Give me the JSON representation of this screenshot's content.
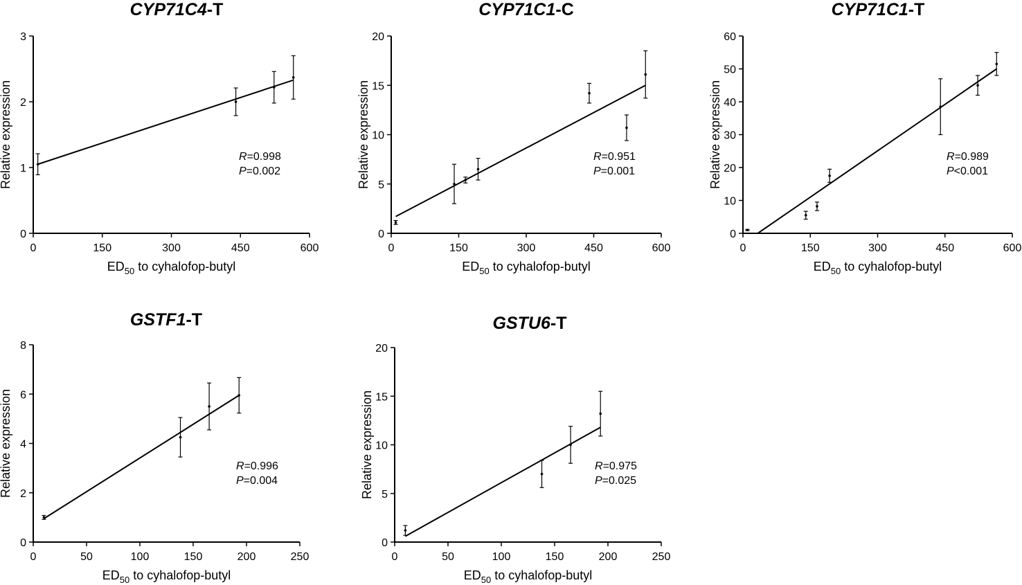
{
  "chart_data": [
    {
      "type": "scatter",
      "title": "CYP71C4",
      "title_suffix": "-T",
      "xlabel": "ED",
      "xlabel_sub": "50",
      "xlabel_rest": " to  cyhalofop-butyl",
      "ylabel": "Relative expression",
      "xlim": [
        0,
        600
      ],
      "ylim": [
        0,
        3
      ],
      "xticks": [
        0,
        150,
        300,
        450,
        600
      ],
      "yticks": [
        0,
        1,
        2,
        3
      ],
      "points": [
        {
          "x": 10,
          "y": 1.05,
          "err": 0.16
        },
        {
          "x": 440,
          "y": 2.0,
          "err": 0.21
        },
        {
          "x": 523,
          "y": 2.22,
          "err": 0.24
        },
        {
          "x": 565,
          "y": 2.37,
          "err": 0.33
        }
      ],
      "fit": [
        [
          10,
          1.05
        ],
        [
          565,
          2.33
        ]
      ],
      "annotation": {
        "r_label": "R",
        "r_value": "=0.998",
        "p_label": "P",
        "p_value": "=0.002"
      }
    },
    {
      "type": "scatter",
      "title": "CYP71C1",
      "title_suffix": "-C",
      "xlabel": "ED",
      "xlabel_sub": "50",
      "xlabel_rest": " to  cyhalofop-butyl",
      "ylabel": "Relative expression",
      "xlim": [
        0,
        600
      ],
      "ylim": [
        0,
        20
      ],
      "xticks": [
        0,
        150,
        300,
        450,
        600
      ],
      "yticks": [
        0,
        5,
        10,
        15,
        20
      ],
      "points": [
        {
          "x": 10,
          "y": 1.1,
          "err": 0.2
        },
        {
          "x": 140,
          "y": 5.0,
          "err": 2.0
        },
        {
          "x": 165,
          "y": 5.4,
          "err": 0.3
        },
        {
          "x": 193,
          "y": 6.5,
          "err": 1.1
        },
        {
          "x": 440,
          "y": 14.2,
          "err": 1.0
        },
        {
          "x": 523,
          "y": 10.7,
          "err": 1.3
        },
        {
          "x": 565,
          "y": 16.1,
          "err": 2.4
        }
      ],
      "fit": [
        [
          10,
          1.7
        ],
        [
          565,
          15.0
        ]
      ],
      "annotation": {
        "r_label": "R",
        "r_value": "=0.951",
        "p_label": "P",
        "p_value": "=0.001"
      }
    },
    {
      "type": "scatter",
      "title": "CYP71C1",
      "title_suffix": "-T",
      "xlabel": "ED",
      "xlabel_sub": "50",
      "xlabel_rest": " to  cyhalofop-butyl",
      "ylabel": "Relative expression",
      "xlim": [
        0,
        600
      ],
      "ylim": [
        0,
        60
      ],
      "xticks": [
        0,
        150,
        300,
        450,
        600
      ],
      "yticks": [
        0,
        10,
        20,
        30,
        40,
        50,
        60
      ],
      "points": [
        {
          "x": 10,
          "y": 1.0,
          "err": 0.2
        },
        {
          "x": 140,
          "y": 5.5,
          "err": 1.2
        },
        {
          "x": 165,
          "y": 8.2,
          "err": 1.3
        },
        {
          "x": 193,
          "y": 17.5,
          "err": 2.0
        },
        {
          "x": 440,
          "y": 38.5,
          "err": 8.5
        },
        {
          "x": 523,
          "y": 45.0,
          "err": 3.0
        },
        {
          "x": 565,
          "y": 51.5,
          "err": 3.5
        }
      ],
      "fit": [
        [
          33,
          0
        ],
        [
          565,
          50.0
        ]
      ],
      "annotation": {
        "r_label": "R",
        "r_value": "=0.989",
        "p_label": "P",
        "p_value": "<0.001"
      }
    },
    {
      "type": "scatter",
      "title": "GSTF1",
      "title_suffix": "-T",
      "xlabel": "ED",
      "xlabel_sub": "50",
      "xlabel_rest": " to  cyhalofop-butyl",
      "ylabel": "Relative expression",
      "xlim": [
        0,
        250
      ],
      "ylim": [
        0,
        8
      ],
      "xticks": [
        0,
        50,
        100,
        150,
        200,
        250
      ],
      "yticks": [
        0,
        2,
        4,
        6,
        8
      ],
      "points": [
        {
          "x": 10,
          "y": 1.0,
          "err": 0.08
        },
        {
          "x": 138,
          "y": 4.25,
          "err": 0.8
        },
        {
          "x": 165,
          "y": 5.5,
          "err": 0.95
        },
        {
          "x": 193,
          "y": 5.95,
          "err": 0.72
        }
      ],
      "fit": [
        [
          10,
          0.95
        ],
        [
          193,
          5.95
        ]
      ],
      "annotation": {
        "r_label": "R",
        "r_value": "=0.996",
        "p_label": "P",
        "p_value": "=0.004"
      }
    },
    {
      "type": "scatter",
      "title": "GSTU6",
      "title_suffix": "-T",
      "xlabel": "ED",
      "xlabel_sub": "50",
      "xlabel_rest": " to  cyhalofop-butyl",
      "ylabel": "Relative expression",
      "xlim": [
        0,
        250
      ],
      "ylim": [
        0,
        20
      ],
      "xticks": [
        0,
        50,
        100,
        150,
        200,
        250
      ],
      "yticks": [
        0,
        5,
        10,
        15,
        20
      ],
      "points": [
        {
          "x": 10,
          "y": 1.2,
          "err": 0.5
        },
        {
          "x": 138,
          "y": 7.0,
          "err": 1.4
        },
        {
          "x": 165,
          "y": 10.0,
          "err": 1.9
        },
        {
          "x": 193,
          "y": 13.2,
          "err": 2.3
        }
      ],
      "fit": [
        [
          10,
          0.6
        ],
        [
          193,
          11.8
        ]
      ],
      "annotation": {
        "r_label": "R",
        "r_value": "=0.975",
        "p_label": "P",
        "p_value": "=0.025"
      }
    }
  ]
}
